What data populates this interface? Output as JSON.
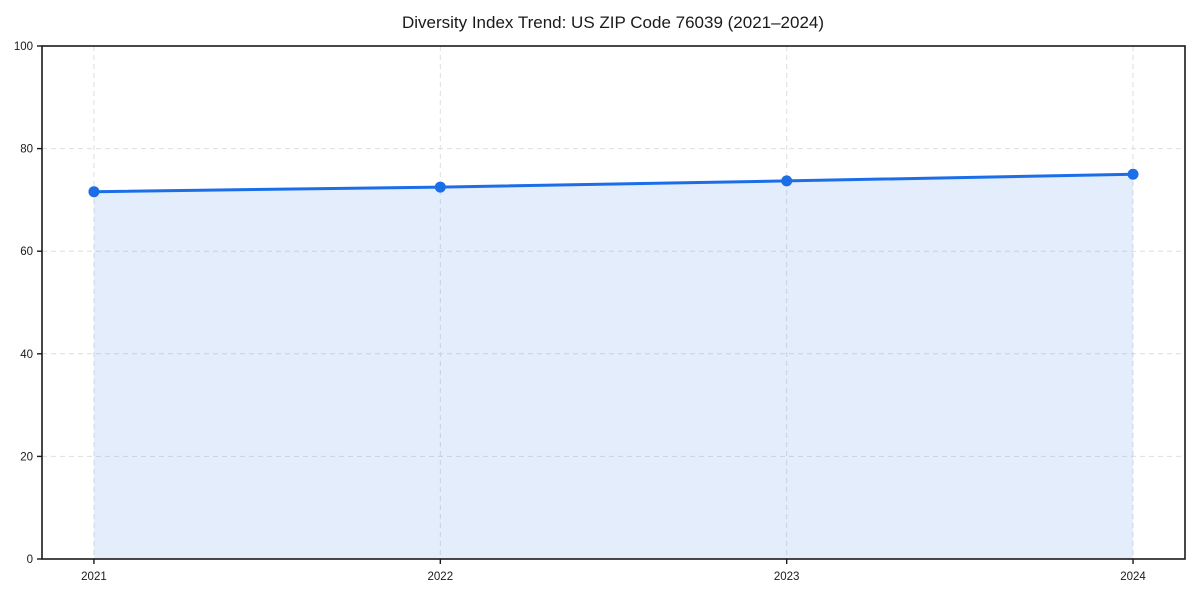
{
  "title": "Diversity Index Trend: US ZIP Code 76039 (2021–2024)",
  "chart_data": {
    "type": "area",
    "title": "Diversity Index Trend: US ZIP Code 76039 (2021–2024)",
    "xlabel": "",
    "ylabel": "",
    "x": [
      2021,
      2022,
      2023,
      2024
    ],
    "series": [
      {
        "name": "Diversity Index",
        "values": [
          71.6,
          72.5,
          73.7,
          75.0
        ]
      }
    ],
    "xtick_labels": [
      "2021",
      "2022",
      "2023",
      "2024"
    ],
    "yticks": [
      0,
      20,
      40,
      60,
      80,
      100
    ],
    "ylim": [
      0,
      100
    ],
    "xlim": [
      2020.85,
      2024.15
    ],
    "grid": true,
    "grid_style": "dashed",
    "legend": false,
    "marker": "circle",
    "colors": {
      "line": "#1b6ee8",
      "marker": "#1b6ee8",
      "fill": "#1b6ee8",
      "fill_opacity": 0.12,
      "grid": "#dedede",
      "spine": "#1a1a1a",
      "tick": "#1a1a1a",
      "text": "#1a1a1a",
      "background": "#ffffff"
    }
  }
}
